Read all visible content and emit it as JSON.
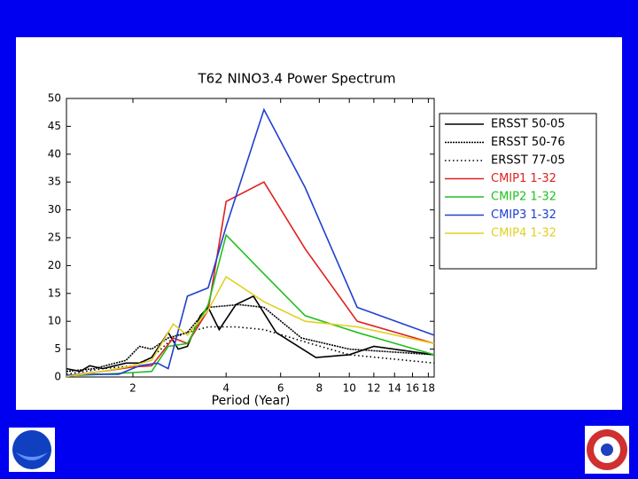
{
  "chart_data": {
    "type": "line",
    "title": "T62 NINO3.4 Power Spectrum",
    "xlabel": "Period (Year)",
    "xscale": "log",
    "xlim": [
      1.22,
      18.8
    ],
    "xticks": [
      2,
      4,
      6,
      8,
      10,
      12,
      14,
      16,
      18
    ],
    "ylim": [
      0,
      50
    ],
    "yticks": [
      0,
      5,
      10,
      15,
      20,
      25,
      30,
      35,
      40,
      45,
      50
    ],
    "grid": false,
    "legend": "right",
    "series": [
      {
        "name": "ERSST 50-05",
        "color": "#000000",
        "style": "solid",
        "x": [
          1.22,
          1.35,
          1.45,
          1.6,
          1.9,
          2.1,
          2.3,
          2.6,
          2.8,
          3.0,
          3.3,
          3.5,
          3.8,
          4.3,
          4.9,
          5.8,
          7.8,
          10,
          12,
          18.8
        ],
        "values": [
          1.5,
          1,
          2,
          1.5,
          2.5,
          2.5,
          3.5,
          8,
          5,
          5.5,
          11,
          12.5,
          8.5,
          13,
          14.5,
          8,
          3.5,
          4,
          5.5,
          4
        ]
      },
      {
        "name": "ERSST 50-76",
        "color": "#000000",
        "style": "dense",
        "x": [
          1.22,
          1.5,
          1.9,
          2.1,
          2.3,
          2.6,
          3.0,
          3.5,
          4.4,
          5.3,
          7,
          10,
          18.8
        ],
        "values": [
          1,
          1.5,
          3,
          5.5,
          5,
          7,
          8,
          12.5,
          13,
          12.5,
          7,
          5,
          4
        ]
      },
      {
        "name": "ERSST 77-05",
        "color": "#000000",
        "style": "dotted",
        "x": [
          1.22,
          1.6,
          2.0,
          2.3,
          2.7,
          3.0,
          3.5,
          4.3,
          5.3,
          7.5,
          10,
          18.8
        ],
        "values": [
          0.5,
          1.5,
          2,
          3.5,
          7,
          8,
          9,
          9,
          8.5,
          6,
          4,
          2.5
        ]
      },
      {
        "name": "CMIP1 1-32",
        "color": "#e02020",
        "style": "solid",
        "x": [
          1.22,
          1.6,
          2.0,
          2.3,
          2.7,
          3.0,
          3.5,
          4.0,
          5.3,
          7.2,
          10.6,
          18.8
        ],
        "values": [
          0.2,
          1,
          1.8,
          2,
          7,
          6,
          12,
          31.5,
          35,
          23,
          10,
          6
        ]
      },
      {
        "name": "CMIP2 1-32",
        "color": "#20c020",
        "style": "solid",
        "x": [
          1.22,
          1.6,
          2.0,
          2.3,
          2.6,
          3.0,
          3.5,
          4.0,
          5.3,
          7.2,
          10.6,
          18.8
        ],
        "values": [
          0.2,
          0.5,
          0.8,
          1,
          5.5,
          6,
          13,
          25.5,
          18.5,
          11,
          8,
          4
        ]
      },
      {
        "name": "CMIP3 1-32",
        "color": "#2040d0",
        "style": "solid",
        "x": [
          1.22,
          1.5,
          1.8,
          2.1,
          2.4,
          2.6,
          3.0,
          3.5,
          4.0,
          5.3,
          7.2,
          10.6,
          18.8
        ],
        "values": [
          0.3,
          0.5,
          0.5,
          2,
          2.5,
          1.5,
          14.5,
          16,
          27,
          48,
          34,
          12.5,
          7.5
        ]
      },
      {
        "name": "CMIP4 1-32",
        "color": "#e0d020",
        "style": "solid",
        "x": [
          1.22,
          1.6,
          2.0,
          2.3,
          2.7,
          3.0,
          3.5,
          4.0,
          5.3,
          7.2,
          10.6,
          18.8
        ],
        "values": [
          0.1,
          1,
          2,
          3,
          9.5,
          7.5,
          12,
          18,
          13.5,
          10,
          9,
          6
        ]
      }
    ]
  }
}
